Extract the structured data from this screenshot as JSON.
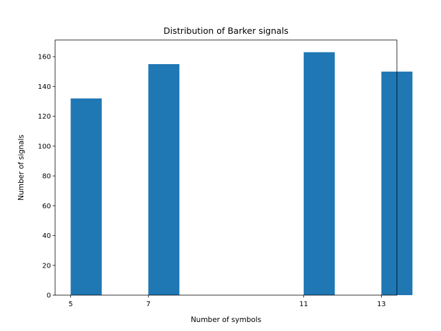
{
  "chart_data": {
    "type": "bar",
    "title": "Distribution of Barker signals",
    "xlabel": "Number of symbols",
    "ylabel": "Number of signals",
    "categories": [
      "5",
      "7",
      "11",
      "13"
    ],
    "x": [
      5,
      7,
      11,
      13
    ],
    "values": [
      132,
      155,
      163,
      150
    ],
    "xlim": [
      4.6,
      13.4
    ],
    "ylim": [
      0,
      171.2
    ],
    "xticks": [
      5,
      7,
      11,
      13
    ],
    "yticks": [
      0,
      20,
      40,
      60,
      80,
      100,
      120,
      140,
      160
    ],
    "bar_color": "#1f77b4",
    "grid": false,
    "legend": "none"
  }
}
